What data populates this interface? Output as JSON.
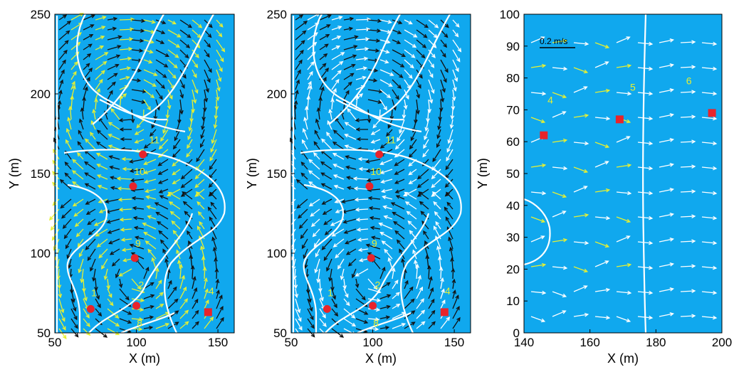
{
  "colors": {
    "field_bg": "#10a8ee",
    "contour": "#ffffff",
    "label": "#e6f033",
    "marker": "#e8242b",
    "arrow_yellow": "#e6f033",
    "arrow_black": "#111111",
    "arrow_white": "#ffffff"
  },
  "chart_data": [
    {
      "type": "vector-field",
      "xlabel": "X (m)",
      "ylabel": "Y (m)",
      "xlim": [
        50,
        160
      ],
      "ylim": [
        50,
        250
      ],
      "xticks": [
        50,
        100,
        150
      ],
      "yticks": [
        50,
        100,
        150,
        200,
        250
      ],
      "arrow_colors": [
        "yellow",
        "black"
      ],
      "circle_markers": [
        [
          72,
          65
        ],
        [
          100,
          67
        ],
        [
          99,
          97
        ],
        [
          98,
          142
        ],
        [
          104,
          162
        ]
      ],
      "square_markers": [
        [
          144,
          63
        ]
      ],
      "contour_labels": [
        {
          "text": "1",
          "x": 74,
          "y": 73
        },
        {
          "text": "2",
          "x": 103,
          "y": 78
        },
        {
          "text": "8",
          "x": 102,
          "y": 54
        },
        {
          "text": "9",
          "x": 101,
          "y": 104
        },
        {
          "text": "10",
          "x": 102,
          "y": 149
        },
        {
          "text": "11",
          "x": 111,
          "y": 169
        },
        {
          "text": "4",
          "x": 146,
          "y": 74
        }
      ]
    },
    {
      "type": "vector-field",
      "xlabel": "X (m)",
      "ylabel": "Y (m)",
      "xlim": [
        50,
        160
      ],
      "ylim": [
        50,
        250
      ],
      "xticks": [
        50,
        100,
        150
      ],
      "yticks": [
        50,
        100,
        150,
        200,
        250
      ],
      "arrow_colors": [
        "white",
        "black"
      ],
      "circle_markers": [
        [
          72,
          65
        ],
        [
          100,
          67
        ],
        [
          99,
          97
        ],
        [
          98,
          142
        ],
        [
          104,
          162
        ]
      ],
      "square_markers": [
        [
          144,
          63
        ]
      ],
      "contour_labels": [
        {
          "text": "1",
          "x": 74,
          "y": 73
        },
        {
          "text": "2",
          "x": 103,
          "y": 78
        },
        {
          "text": "8",
          "x": 102,
          "y": 54
        },
        {
          "text": "9",
          "x": 101,
          "y": 104
        },
        {
          "text": "10",
          "x": 102,
          "y": 149
        },
        {
          "text": "11",
          "x": 111,
          "y": 169
        },
        {
          "text": "4",
          "x": 146,
          "y": 74
        }
      ]
    },
    {
      "type": "vector-field",
      "xlabel": "X (m)",
      "ylabel": "Y (m)",
      "xlim": [
        140,
        200
      ],
      "ylim": [
        0,
        100
      ],
      "xticks": [
        140,
        160,
        180,
        200
      ],
      "yticks": [
        0,
        10,
        20,
        30,
        40,
        50,
        60,
        70,
        80,
        90,
        100
      ],
      "arrow_colors": [
        "white",
        "yellow"
      ],
      "scale_bar": {
        "label": "0.2 m/s"
      },
      "circle_markers": [],
      "square_markers": [
        [
          146,
          62
        ],
        [
          169,
          67
        ],
        [
          197,
          69
        ]
      ],
      "contour_labels": [
        {
          "text": "4",
          "x": 148,
          "y": 72
        },
        {
          "text": "5",
          "x": 173,
          "y": 76
        },
        {
          "text": "6",
          "x": 190,
          "y": 78
        }
      ]
    }
  ]
}
